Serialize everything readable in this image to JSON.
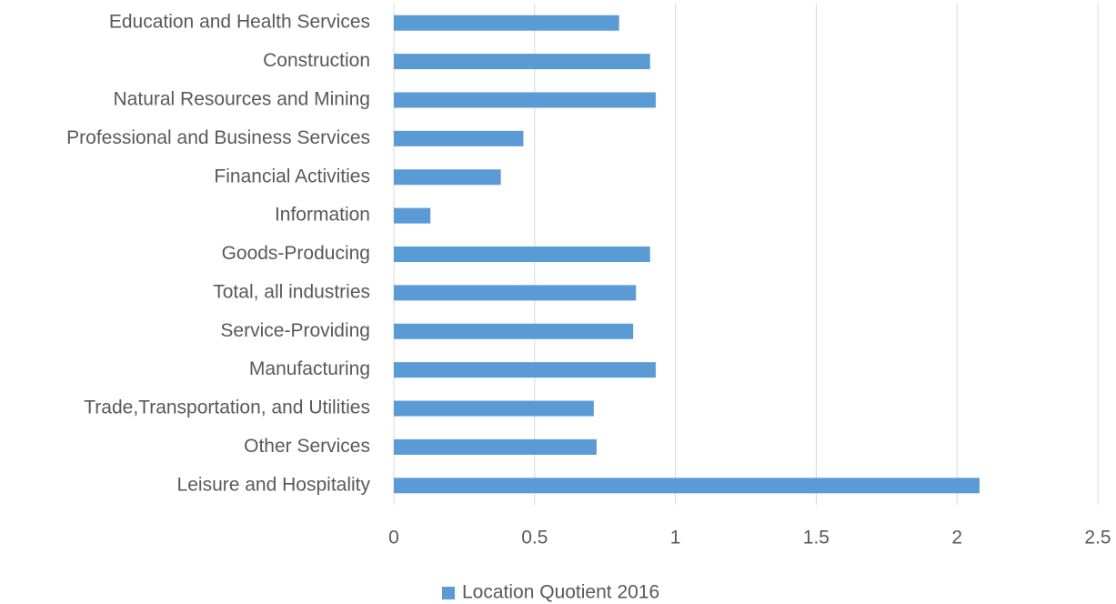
{
  "chart_data": {
    "type": "bar",
    "orientation": "horizontal",
    "categories": [
      "Education and Health Services",
      "Construction",
      "Natural Resources and Mining",
      "Professional and Business Services",
      "Financial Activities",
      "Information",
      "Goods-Producing",
      "Total, all industries",
      "Service-Providing",
      "Manufacturing",
      "Trade,Transportation, and Utilities",
      "Other Services",
      "Leisure and Hospitality"
    ],
    "series": [
      {
        "name": "Location Quotient 2016",
        "color": "#5b9bd5",
        "values": [
          0.8,
          0.91,
          0.93,
          0.46,
          0.38,
          0.13,
          0.91,
          0.86,
          0.85,
          0.93,
          0.71,
          0.72,
          2.08
        ]
      }
    ],
    "xlim": [
      0,
      2.5
    ],
    "xticks": [
      0,
      0.5,
      1,
      1.5,
      2,
      2.5
    ],
    "grid": true,
    "legend": "bottom"
  }
}
